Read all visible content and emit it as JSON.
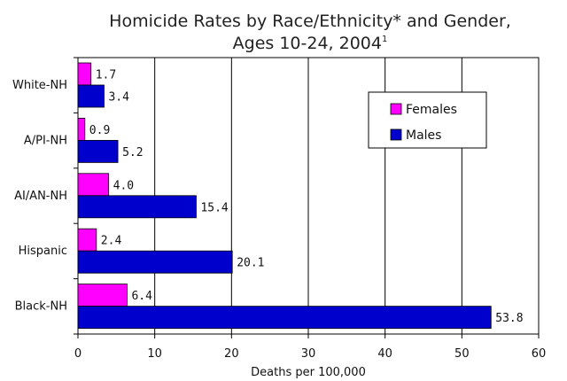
{
  "colors": {
    "females": "#ff00ff",
    "males": "#0000cc",
    "bar_outline": "#000000",
    "gridline": "#000000",
    "axis": "#000000"
  },
  "chart_data": {
    "type": "bar",
    "orientation": "horizontal",
    "title_line1": "Homicide Rates by Race/Ethnicity* and Gender,",
    "title_line2": "Ages 10-24, 2004",
    "title_superscript": "1",
    "xlabel": "Deaths per 100,000",
    "ylabel": "",
    "xlim": [
      0,
      60
    ],
    "xticks": [
      "0",
      "10",
      "20",
      "30",
      "40",
      "50",
      "60"
    ],
    "grid": true,
    "legend_position": "top-right",
    "categories": [
      "White-NH",
      "A/PI-NH",
      "AI/AN-NH",
      "Hispanic",
      "Black-NH"
    ],
    "series": [
      {
        "name": "Females",
        "values": [
          1.7,
          0.9,
          4.0,
          2.4,
          6.4
        ],
        "labels": [
          "1.7",
          "0.9",
          "4.0",
          "2.4",
          "6.4"
        ]
      },
      {
        "name": "Males",
        "values": [
          3.4,
          5.2,
          15.4,
          20.1,
          53.8
        ],
        "labels": [
          "3.4",
          "5.2",
          "15.4",
          "20.1",
          "53.8"
        ]
      }
    ]
  }
}
